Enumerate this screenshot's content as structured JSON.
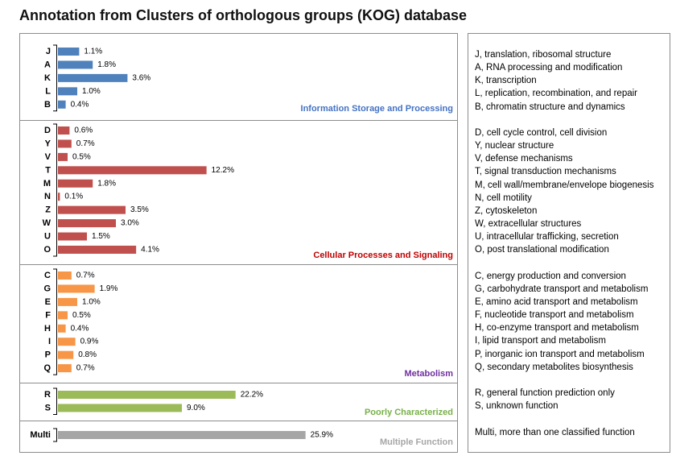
{
  "chart_data": {
    "type": "bar",
    "orientation": "horizontal",
    "title": "Annotation from Clusters of orthologous groups (KOG) database",
    "value_suffix": "%",
    "groups": [
      {
        "name": "Information Storage and Processing",
        "bar_color": "#4F81BD",
        "label_color": "#4472C4",
        "categories": [
          "J",
          "A",
          "K",
          "L",
          "B"
        ],
        "values": [
          1.1,
          1.8,
          3.6,
          1.0,
          0.4
        ]
      },
      {
        "name": "Cellular Processes and Signaling",
        "bar_color": "#C0504D",
        "label_color": "#C00000",
        "categories": [
          "D",
          "Y",
          "V",
          "T",
          "M",
          "N",
          "Z",
          "W",
          "U",
          "O"
        ],
        "values": [
          0.6,
          0.7,
          0.5,
          12.2,
          1.8,
          0.1,
          3.5,
          3.0,
          1.5,
          4.1
        ]
      },
      {
        "name": "Metabolism",
        "bar_color": "#F79646",
        "label_color": "#7030A0",
        "categories": [
          "C",
          "G",
          "E",
          "F",
          "H",
          "I",
          "P",
          "Q"
        ],
        "values": [
          0.7,
          1.9,
          1.0,
          0.5,
          0.4,
          0.9,
          0.8,
          0.7
        ]
      },
      {
        "name": "Poorly Characterized",
        "bar_color": "#9BBB59",
        "label_color": "#77B148",
        "categories": [
          "R",
          "S"
        ],
        "values": [
          22.2,
          9.0
        ]
      },
      {
        "name": "Multiple Function",
        "bar_color": "#A6A6A6",
        "label_color": "#A6A6A6",
        "categories": [
          "Multi"
        ],
        "values": [
          25.9
        ]
      }
    ]
  },
  "legend": {
    "groups": [
      [
        "J, translation, ribosomal structure",
        "A, RNA processing and modification",
        "K, transcription",
        "L, replication, recombination, and repair",
        "B, chromatin structure and dynamics"
      ],
      [
        "D, cell cycle control, cell division",
        "Y, nuclear structure",
        "V, defense mechanisms",
        "T, signal transduction mechanisms",
        "M, cell wall/membrane/envelope biogenesis",
        "N, cell motility",
        "Z, cytoskeleton",
        "W, extracellular structures",
        "U, intracellular trafficking, secretion",
        "O, post translational modification"
      ],
      [
        "C, energy production and conversion",
        "G, carbohydrate transport and metabolism",
        "E, amino acid transport and metabolism",
        "F, nucleotide transport and metabolism",
        "H, co-enzyme transport and metabolism",
        "I, lipid transport and metabolism",
        "P, inorganic ion transport and metabolism",
        "Q, secondary metabolites biosynthesis"
      ],
      [
        "R, general function prediction only",
        "S, unknown function"
      ],
      [
        "Multi, more than one classified function"
      ]
    ]
  }
}
